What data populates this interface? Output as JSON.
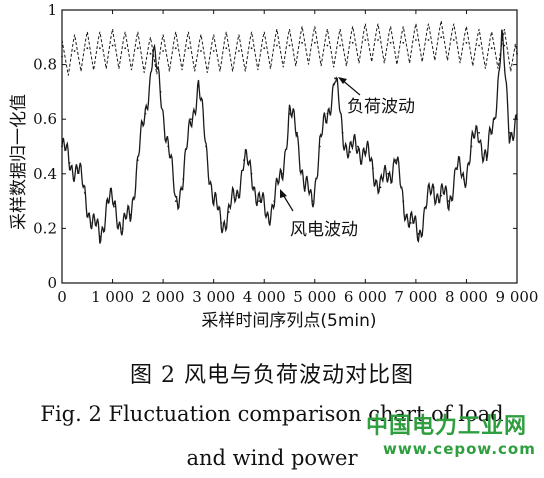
{
  "chart_data": {
    "type": "line",
    "xlabel": "采样时间序列点(5min)",
    "ylabel": "采样数据归一化值",
    "xlim": [
      0,
      9000
    ],
    "ylim": [
      0,
      1
    ],
    "x_ticks": [
      0,
      1000,
      2000,
      3000,
      4000,
      5000,
      6000,
      7000,
      8000,
      9000
    ],
    "x_tick_labels": [
      "0",
      "1 000",
      "2 000",
      "3 000",
      "4 000",
      "5 000",
      "6 000",
      "7 000",
      "8 000",
      "9 000"
    ],
    "y_ticks": [
      0,
      0.2,
      0.4,
      0.6,
      0.8,
      1
    ],
    "y_tick_labels": [
      "0",
      "0.2",
      "0.4",
      "0.6",
      "0.8",
      "1"
    ],
    "grid": false,
    "series": [
      {
        "name": "负荷波动",
        "style": "dashed",
        "x": [
          0,
          250,
          500,
          750,
          1000,
          1250,
          1500,
          1750,
          2000,
          2250,
          2500,
          2750,
          3000,
          3250,
          3500,
          3750,
          4000,
          4250,
          4500,
          4750,
          5000,
          5250,
          5500,
          5750,
          6000,
          6250,
          6500,
          6750,
          7000,
          7250,
          7500,
          7750,
          8000,
          8250,
          8500,
          8750,
          9000
        ],
        "y": [
          0.83,
          0.85,
          0.86,
          0.86,
          0.87,
          0.86,
          0.86,
          0.84,
          0.85,
          0.86,
          0.86,
          0.85,
          0.85,
          0.86,
          0.85,
          0.86,
          0.86,
          0.87,
          0.87,
          0.88,
          0.88,
          0.87,
          0.87,
          0.88,
          0.89,
          0.89,
          0.88,
          0.88,
          0.89,
          0.89,
          0.9,
          0.89,
          0.88,
          0.87,
          0.86,
          0.87,
          0.84
        ]
      },
      {
        "name": "风电波动",
        "style": "solid",
        "x": [
          0,
          150,
          300,
          450,
          600,
          750,
          900,
          1050,
          1200,
          1350,
          1500,
          1650,
          1800,
          1950,
          2100,
          2250,
          2400,
          2550,
          2700,
          2850,
          3000,
          3150,
          3300,
          3450,
          3600,
          3750,
          3900,
          4050,
          4200,
          4350,
          4500,
          4650,
          4800,
          4950,
          5100,
          5250,
          5400,
          5550,
          5700,
          5850,
          6000,
          6150,
          6300,
          6450,
          6600,
          6750,
          6900,
          7050,
          7200,
          7350,
          7500,
          7650,
          7800,
          7950,
          8100,
          8250,
          8400,
          8550,
          8700,
          8850,
          9000
        ],
        "y": [
          0.5,
          0.44,
          0.42,
          0.33,
          0.22,
          0.17,
          0.3,
          0.28,
          0.2,
          0.25,
          0.45,
          0.62,
          0.85,
          0.7,
          0.5,
          0.3,
          0.38,
          0.6,
          0.72,
          0.5,
          0.3,
          0.22,
          0.26,
          0.32,
          0.45,
          0.4,
          0.3,
          0.25,
          0.3,
          0.4,
          0.62,
          0.55,
          0.35,
          0.3,
          0.5,
          0.62,
          0.75,
          0.55,
          0.48,
          0.5,
          0.48,
          0.42,
          0.35,
          0.4,
          0.45,
          0.3,
          0.22,
          0.18,
          0.28,
          0.35,
          0.32,
          0.3,
          0.42,
          0.38,
          0.5,
          0.55,
          0.45,
          0.6,
          0.9,
          0.55,
          0.6
        ]
      }
    ],
    "annotations": [
      "负荷波动",
      "风电波动"
    ]
  },
  "caption": {
    "cn": "图 2   风电与负荷波动对比图",
    "en_line1": "Fig. 2    Fluctuation comparison chart of load",
    "en_line2": "and wind power"
  },
  "watermark": {
    "text_cn": "中国电力工业网",
    "url": "www.cepow.com",
    "color": "#2e9e3e"
  }
}
